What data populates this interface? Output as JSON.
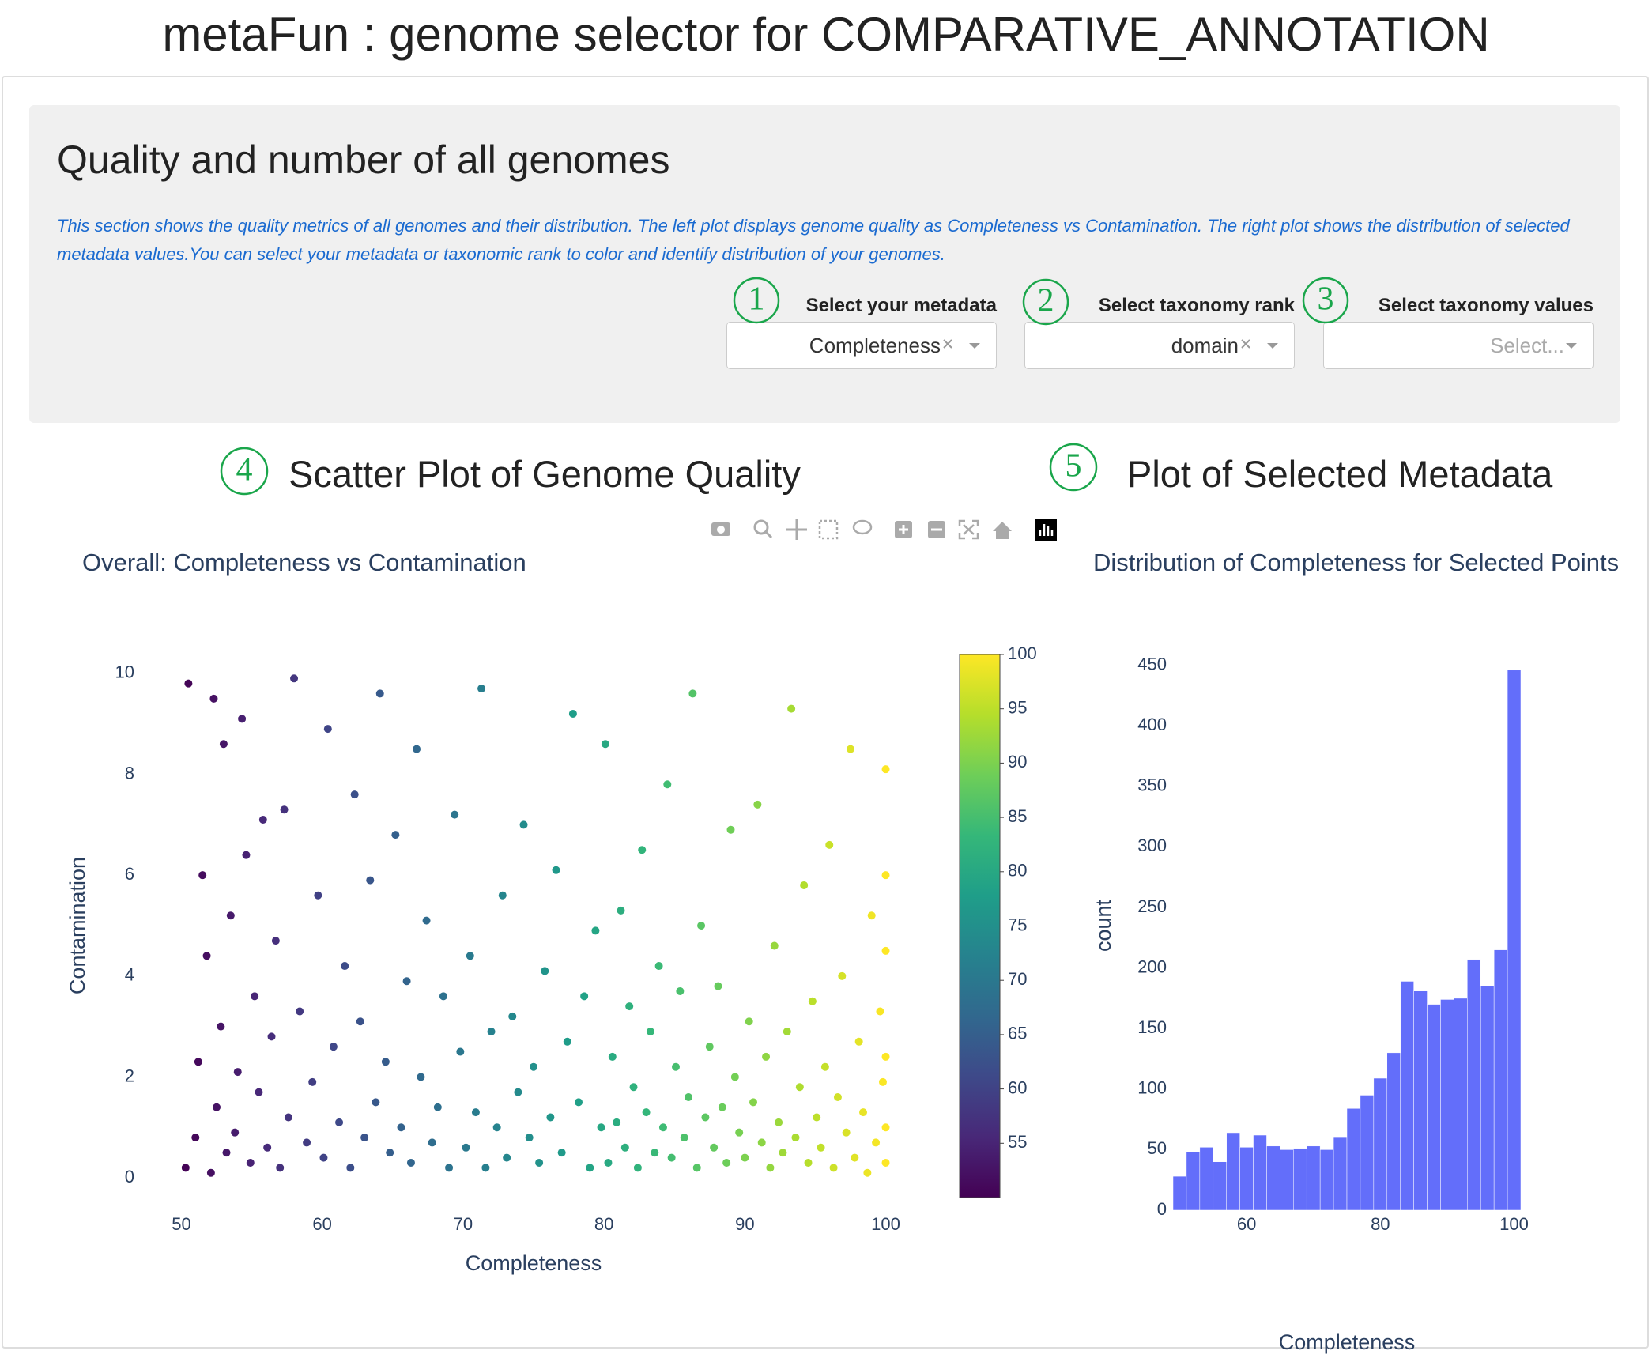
{
  "header": {
    "title": "metaFun : genome selector for COMPARATIVE_ANNOTATION"
  },
  "panel": {
    "title": "Quality and number of all genomes",
    "description": "This section shows the quality metrics of all genomes and their distribution. The left plot displays genome quality as Completeness vs Contamination. The right plot shows the distribution of selected metadata values.You can select your metadata or taxonomic rank to color and identify distribution of your genomes.",
    "controls": [
      {
        "number": "1",
        "label": "Select your metadata",
        "value": "Completeness"
      },
      {
        "number": "2",
        "label": "Select taxonomy rank",
        "value": "domain"
      },
      {
        "number": "3",
        "label": "Select taxonomy values",
        "placeholder": "Select..."
      }
    ]
  },
  "sections": [
    {
      "number": "4",
      "title": "Scatter Plot of Genome Quality"
    },
    {
      "number": "5",
      "title": "Plot of Selected Metadata"
    }
  ],
  "chart_data": [
    {
      "type": "scatter",
      "title": "Overall: Completeness vs Contamination",
      "x_label": "Completeness",
      "y_label": "Contamination",
      "xlim": [
        47,
        103
      ],
      "ylim": [
        -0.5,
        10.5
      ],
      "xticks": [
        50,
        60,
        70,
        80,
        90,
        100
      ],
      "yticks": [
        0,
        2,
        4,
        6,
        8,
        10
      ],
      "colorscale": "Viridis",
      "colorbar_lim": [
        50,
        100
      ],
      "colorbar_ticks": [
        55,
        60,
        65,
        70,
        75,
        80,
        85,
        90,
        95,
        100
      ],
      "x": [
        50.3,
        50.5,
        51.0,
        51.2,
        51.5,
        51.8,
        52.1,
        52.3,
        52.5,
        52.8,
        53.0,
        53.2,
        53.5,
        53.8,
        54.0,
        54.3,
        54.6,
        54.9,
        55.2,
        55.5,
        55.8,
        56.1,
        56.4,
        56.7,
        57.0,
        57.3,
        57.6,
        58.0,
        58.4,
        58.9,
        59.3,
        59.7,
        60.1,
        60.4,
        60.8,
        61.2,
        61.6,
        62.0,
        62.3,
        62.7,
        63.0,
        63.4,
        63.8,
        64.1,
        64.5,
        64.8,
        65.2,
        65.6,
        66.0,
        66.3,
        66.7,
        67.0,
        67.4,
        67.8,
        68.2,
        68.6,
        69.0,
        69.4,
        69.8,
        70.2,
        70.5,
        70.9,
        71.3,
        71.6,
        72.0,
        72.4,
        72.8,
        73.1,
        73.5,
        73.9,
        74.3,
        74.7,
        75.0,
        75.4,
        75.8,
        76.2,
        76.6,
        77.0,
        77.4,
        77.8,
        78.2,
        78.6,
        79.0,
        79.4,
        79.8,
        80.1,
        80.3,
        80.6,
        80.9,
        81.2,
        81.5,
        81.8,
        82.1,
        82.4,
        82.7,
        83.0,
        83.3,
        83.6,
        83.9,
        84.2,
        84.5,
        84.8,
        85.1,
        85.4,
        85.7,
        86.0,
        86.3,
        86.6,
        86.9,
        87.2,
        87.5,
        87.8,
        88.1,
        88.4,
        88.7,
        89.0,
        89.3,
        89.6,
        90.0,
        90.3,
        90.6,
        90.9,
        91.2,
        91.5,
        91.8,
        92.1,
        92.4,
        92.7,
        93.0,
        93.3,
        93.6,
        93.9,
        94.2,
        94.5,
        94.8,
        95.1,
        95.4,
        95.7,
        96.0,
        96.3,
        96.6,
        96.9,
        97.2,
        97.5,
        97.8,
        98.1,
        98.4,
        98.7,
        99.0,
        99.3,
        99.6,
        99.8,
        100,
        100,
        100,
        100,
        100,
        100
      ],
      "values": [
        0.2,
        9.8,
        0.8,
        2.3,
        6.0,
        4.4,
        0.1,
        9.5,
        1.4,
        3.0,
        8.6,
        0.5,
        5.2,
        0.9,
        2.1,
        9.1,
        6.4,
        0.3,
        3.6,
        1.7,
        7.1,
        0.6,
        2.8,
        4.7,
        0.2,
        7.3,
        1.2,
        9.9,
        3.3,
        0.7,
        1.9,
        5.6,
        0.4,
        8.9,
        2.6,
        1.1,
        4.2,
        0.2,
        7.6,
        3.1,
        0.8,
        5.9,
        1.5,
        9.6,
        2.3,
        0.5,
        6.8,
        1.0,
        3.9,
        0.3,
        8.5,
        2.0,
        5.1,
        0.7,
        1.4,
        3.6,
        0.2,
        7.2,
        2.5,
        0.6,
        4.4,
        1.3,
        9.7,
        0.2,
        2.9,
        1.0,
        5.6,
        0.4,
        3.2,
        1.7,
        7.0,
        0.8,
        2.2,
        0.3,
        4.1,
        1.2,
        6.1,
        0.5,
        2.7,
        9.2,
        1.5,
        3.6,
        0.2,
        4.9,
        1.0,
        8.6,
        0.3,
        2.4,
        1.1,
        5.3,
        0.6,
        3.4,
        1.8,
        0.2,
        6.5,
        1.3,
        2.9,
        0.5,
        4.2,
        1.0,
        7.8,
        0.4,
        2.2,
        3.7,
        0.8,
        1.6,
        9.6,
        0.2,
        5.0,
        1.2,
        2.6,
        0.6,
        3.8,
        1.4,
        0.3,
        6.9,
        2.0,
        0.9,
        0.4,
        3.1,
        1.5,
        7.4,
        0.7,
        2.4,
        0.2,
        4.6,
        1.1,
        0.5,
        2.9,
        9.3,
        0.8,
        1.8,
        5.8,
        0.3,
        3.5,
        1.2,
        0.6,
        2.2,
        6.6,
        0.2,
        1.6,
        4.0,
        0.9,
        8.5,
        0.4,
        2.7,
        1.3,
        0.1,
        5.2,
        0.7,
        3.3,
        1.9,
        0.3,
        8.1,
        2.4,
        6.0,
        1.0,
        4.5
      ]
    },
    {
      "type": "histogram",
      "title": "Distribution of Completeness for Selected Points",
      "x_label": "Completeness",
      "y_label": "count",
      "color": "#636efa",
      "xlim": [
        49,
        101
      ],
      "ylim": [
        0,
        470
      ],
      "xticks": [
        60,
        80,
        100
      ],
      "yticks": [
        0,
        50,
        100,
        150,
        200,
        250,
        300,
        350,
        400,
        450
      ],
      "bins": [
        49,
        51,
        53,
        55,
        57,
        59,
        61,
        63,
        65,
        67,
        69,
        71,
        73,
        75,
        77,
        79,
        81,
        83,
        85,
        87,
        89,
        91,
        93,
        95,
        97,
        99,
        101
      ],
      "values": [
        28,
        48,
        52,
        40,
        64,
        52,
        62,
        53,
        50,
        51,
        53,
        50,
        60,
        84,
        95,
        109,
        130,
        189,
        181,
        170,
        174,
        175,
        207,
        185,
        215,
        446
      ]
    }
  ]
}
